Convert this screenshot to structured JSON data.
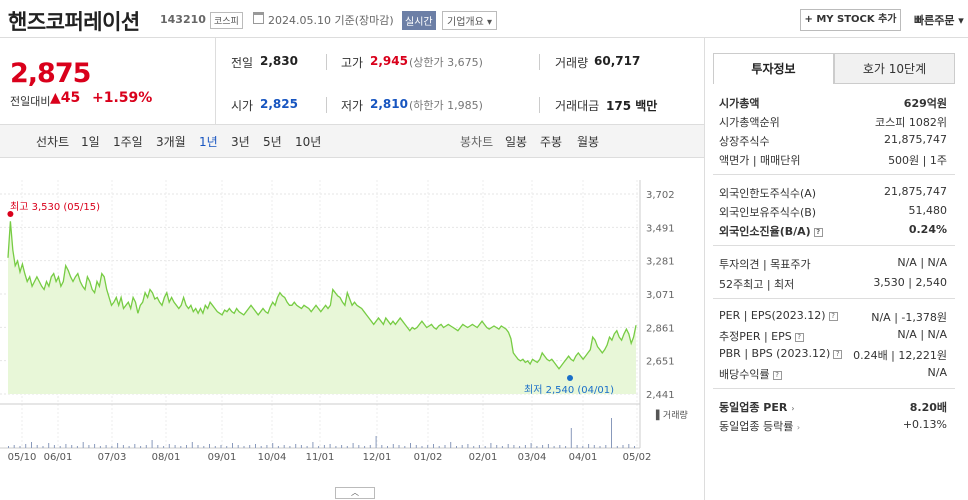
{
  "header": {
    "stock_name": "핸즈코퍼레이션",
    "stock_code": "143210",
    "market": "코스피",
    "date": "2024.05.10 기준(장마감)",
    "realtime": "실시간",
    "overview": "기업개요 ▾",
    "my_stock": "+ MY STOCK 추가",
    "quick_order": "빠른주문 ▾"
  },
  "price": {
    "current": "2,875",
    "change_label": "전일대비",
    "change_arrow": "▲",
    "change_amount": "45",
    "change_pct": "+1.59%"
  },
  "summary": {
    "prev_label": "전일",
    "prev": "2,830",
    "high_label": "고가",
    "high": "2,945",
    "upper_limit": "(상한가 3,675)",
    "volume_label": "거래량",
    "volume": "60,717",
    "open_label": "시가",
    "open": "2,825",
    "low_label": "저가",
    "low": "2,810",
    "lower_limit": "(하한가 1,985)",
    "amount_label": "거래대금",
    "amount": "175 백만"
  },
  "periods": {
    "line_chart": "선차트",
    "items": [
      "1일",
      "1주일",
      "3개월",
      "1년",
      "3년",
      "5년",
      "10년"
    ],
    "active": "1년",
    "candle_chart": "봉차트",
    "candle_items": [
      "일봉",
      "주봉",
      "월봉"
    ]
  },
  "chart_data": {
    "type": "area",
    "color": "#77cc44",
    "fill": "#e8f7d8",
    "ylim": [
      2441,
      3702
    ],
    "y_ticks": [
      "3,702",
      "3,491",
      "3,281",
      "3,071",
      "2,861",
      "2,651",
      "2,441"
    ],
    "x_ticks": [
      "05/10",
      "06/01",
      "07/03",
      "08/01",
      "09/01",
      "10/04",
      "11/01",
      "12/01",
      "01/02",
      "02/01",
      "03/04",
      "04/01",
      "05/02"
    ],
    "max_label": "최고 3,530 (05/15)",
    "min_label": "최저 2,540 (04/01)",
    "volume_label": "거래량",
    "values": [
      3300,
      3530,
      3350,
      3250,
      3280,
      3210,
      3260,
      3200,
      3150,
      3180,
      3120,
      3150,
      3180,
      3150,
      3120,
      3100,
      3150,
      3120,
      3180,
      3200,
      3150,
      3180,
      3120,
      3150,
      3250,
      3220,
      3180,
      3150,
      3180,
      3200,
      3150,
      3120,
      3100,
      3180,
      3150,
      3100,
      3080,
      3150,
      3120,
      3200,
      3180,
      3100,
      3050,
      3000,
      3020,
      3050,
      3000,
      3050,
      2980,
      3000,
      3020,
      2980,
      3050,
      3020,
      2950,
      3000,
      3020,
      3080,
      3050,
      3100,
      3080,
      3040,
      3050,
      3020,
      3000,
      3050,
      3080,
      3020,
      3050,
      3020,
      3000,
      2980,
      3000,
      3050,
      3000,
      2980,
      3000,
      2960,
      2980,
      2950,
      2980,
      2950,
      3000,
      2980,
      3020,
      3000,
      2980,
      2960,
      2950,
      2940,
      2970,
      2960,
      2980,
      2960,
      2950,
      2980,
      2960,
      2950,
      2940,
      2960,
      2980,
      3000,
      2980,
      2960,
      2940,
      2960,
      2980,
      2960,
      2950,
      2990,
      3020,
      3000,
      3050,
      3080,
      3060,
      3050,
      3020,
      3000,
      3000,
      3020,
      3000,
      2990,
      2980,
      3000,
      2990,
      2980,
      2960,
      2980,
      3000,
      2980,
      2960,
      2980,
      3000,
      2980,
      3000,
      3100,
      3080,
      3060,
      3050,
      3020,
      3000,
      3080,
      3040,
      3000,
      3020,
      3000,
      2990,
      2980,
      2960,
      2940,
      2920,
      2900,
      2880,
      2900,
      2920,
      2900,
      2880,
      2920,
      2900,
      2880,
      2900,
      2880,
      2900,
      2920,
      2900,
      2880,
      2860,
      2840,
      2860,
      2850,
      2860,
      2880,
      2900,
      2880,
      2860,
      2870,
      2880,
      2860,
      2850,
      2870,
      2880,
      2860,
      2870,
      2880,
      2870,
      2860,
      2850,
      2840,
      2860,
      2880,
      2870,
      2860,
      2870,
      2880,
      2870,
      2860,
      2880,
      2900,
      2880,
      2860,
      2850,
      2860,
      2870,
      2860,
      2850,
      2870,
      2860,
      2850,
      2830,
      2790,
      2700,
      2680,
      2660,
      2650,
      2660,
      2640,
      2650,
      2630,
      2660,
      2650,
      2640,
      2660,
      2700,
      2680,
      2660,
      2650,
      2660,
      2640,
      2620,
      2600,
      2620,
      2640,
      2660,
      2680,
      2660,
      2650,
      2680,
      2700,
      2680,
      2660,
      2680,
      2700,
      2720,
      2800,
      2780,
      2740,
      2720,
      2700,
      2720,
      2750,
      2800,
      2780,
      2820,
      2840,
      2800,
      2780,
      2820,
      2850,
      2820,
      2760,
      2800,
      2875
    ]
  },
  "right_panel": {
    "tab_active": "투자정보",
    "tab_other": "호가 10단계",
    "market_cap_label": "시가총액",
    "market_cap": "629억원",
    "market_rank_label": "시가총액순위",
    "market_rank": "코스피 1082위",
    "shares_label": "상장주식수",
    "shares": "21,875,747",
    "face_label": "액면가 | 매매단위",
    "face": "500원 | 1주",
    "foreign_limit_label": "외국인한도주식수(A)",
    "foreign_limit": "21,875,747",
    "foreign_hold_label": "외국인보유주식수(B)",
    "foreign_hold": "51,480",
    "foreign_rate_label": "외국인소진율(B/A)",
    "foreign_rate": "0.24%",
    "opinion_label": "투자의견 | 목표주가",
    "opinion": "N/A | N/A",
    "week52_label": "52주최고 | 최저",
    "week52": "3,530 | 2,540",
    "per_label": "PER | EPS(2023.12)",
    "per": "N/A | -1,378원",
    "est_per_label": "추정PER | EPS",
    "est_per": "N/A | N/A",
    "pbr_label": "PBR | BPS (2023.12)",
    "pbr": "0.24배 | 12,221원",
    "dividend_label": "배당수익률",
    "dividend": "N/A",
    "industry_per_label": "동일업종 PER",
    "industry_per": "8.20배",
    "industry_change_label": "동일업종 등락률",
    "industry_change": "+0.13%"
  }
}
